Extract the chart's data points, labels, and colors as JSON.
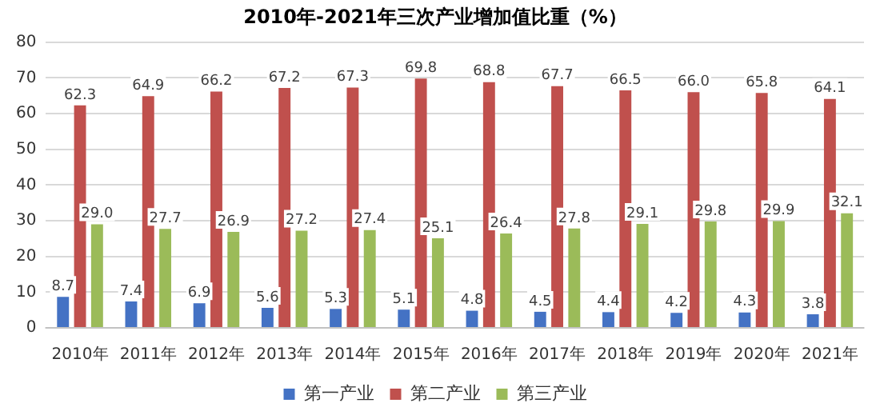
{
  "chart_data": {
    "type": "bar",
    "title": "2010年-2021年三次产业增加值比重（%）",
    "categories": [
      "2010年",
      "2011年",
      "2012年",
      "2013年",
      "2014年",
      "2015年",
      "2016年",
      "2017年",
      "2018年",
      "2019年",
      "2020年",
      "2021年"
    ],
    "series": [
      {
        "name": "第一产业",
        "color": "#4472c4",
        "values": [
          8.7,
          7.4,
          6.9,
          5.6,
          5.3,
          5.1,
          4.8,
          4.5,
          4.4,
          4.2,
          4.3,
          3.8
        ],
        "value_labels": [
          "8.7",
          "7.4",
          "6.9",
          "5.6",
          "5.3",
          "5.1",
          "4.8",
          "4.5",
          "4.4",
          "4.2",
          "4.3",
          "3.8"
        ]
      },
      {
        "name": "第二产业",
        "color": "#c0504d",
        "values": [
          62.3,
          64.9,
          66.2,
          67.2,
          67.3,
          69.8,
          68.8,
          67.7,
          66.5,
          66.0,
          65.8,
          64.1
        ],
        "value_labels": [
          "62.3",
          "64.9",
          "66.2",
          "67.2",
          "67.3",
          "69.8",
          "68.8",
          "67.7",
          "66.5",
          "66.0",
          "65.8",
          "64.1"
        ]
      },
      {
        "name": "第三产业",
        "color": "#9bbb59",
        "values": [
          29.0,
          27.7,
          26.9,
          27.2,
          27.4,
          25.1,
          26.4,
          27.8,
          29.1,
          29.8,
          29.9,
          32.1
        ],
        "value_labels": [
          "29.0",
          "27.7",
          "26.9",
          "27.2",
          "27.4",
          "25.1",
          "26.4",
          "27.8",
          "29.1",
          "29.8",
          "29.9",
          "32.1"
        ]
      }
    ],
    "ylim": [
      0,
      80
    ],
    "yticks": [
      0,
      10,
      20,
      30,
      40,
      50,
      60,
      70,
      80
    ],
    "grid": "y",
    "legend": "bottom"
  }
}
